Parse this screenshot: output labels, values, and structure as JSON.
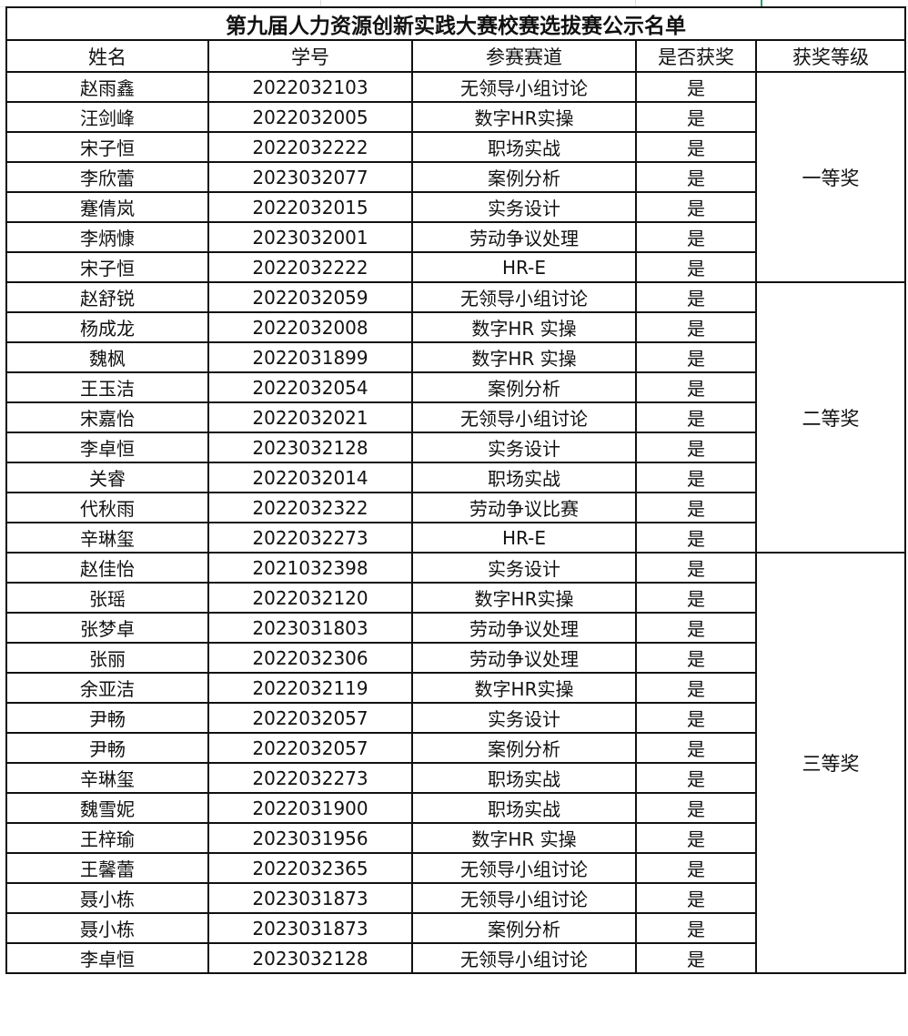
{
  "title": "第九届人力资源创新实践大赛校赛选拔赛公示名单",
  "headers": [
    "姓名",
    "学号",
    "参赛赛道",
    "是否获奖",
    "获奖等级"
  ],
  "groups": [
    {
      "level": "一等奖",
      "rows": [
        [
          "赵雨鑫",
          "2022032103",
          "无领导小组讨论",
          "是"
        ],
        [
          "汪剑峰",
          "2022032005",
          "数字HR实操",
          "是"
        ],
        [
          "宋子恒",
          "2022032222",
          "职场实战",
          "是"
        ],
        [
          "李欣蕾",
          "2023032077",
          "案例分析",
          "是"
        ],
        [
          "蹇倩岚",
          "2022032015",
          "实务设计",
          "是"
        ],
        [
          "李炳慷",
          "2023032001",
          "劳动争议处理",
          "是"
        ],
        [
          "宋子恒",
          "2022032222",
          "HR-E",
          "是"
        ]
      ]
    },
    {
      "level": "二等奖",
      "rows": [
        [
          "赵舒锐",
          "2022032059",
          "无领导小组讨论",
          "是"
        ],
        [
          "杨成龙",
          "2022032008",
          "数字HR 实操",
          "是"
        ],
        [
          "魏枫",
          "2022031899",
          "数字HR 实操",
          "是"
        ],
        [
          "王玉洁",
          "2022032054",
          "案例分析",
          "是"
        ],
        [
          "宋嘉怡",
          "2022032021",
          "无领导小组讨论",
          "是"
        ],
        [
          "李卓恒",
          "2023032128",
          "实务设计",
          "是"
        ],
        [
          "关睿",
          "2022032014",
          "职场实战",
          "是"
        ],
        [
          "代秋雨",
          "2022032322",
          "劳动争议比赛",
          "是"
        ],
        [
          "辛琳玺",
          "2022032273",
          "HR-E",
          "是"
        ]
      ]
    },
    {
      "level": "三等奖",
      "rows": [
        [
          "赵佳怡",
          "2021032398",
          "实务设计",
          "是"
        ],
        [
          "张瑶",
          "2022032120",
          "数字HR实操",
          "是"
        ],
        [
          "张梦卓",
          "2023031803",
          "劳动争议处理",
          "是"
        ],
        [
          "张丽",
          "2022032306",
          "劳动争议处理",
          "是"
        ],
        [
          "余亚洁",
          "2022032119",
          "数字HR实操",
          "是"
        ],
        [
          "尹畅",
          "2022032057",
          "实务设计",
          "是"
        ],
        [
          "尹畅",
          "2022032057",
          "案例分析",
          "是"
        ],
        [
          "辛琳玺",
          "2022032273",
          "职场实战",
          "是"
        ],
        [
          "魏雪妮",
          "2022031900",
          "职场实战",
          "是"
        ],
        [
          "王梓瑜",
          "2023031956",
          "数字HR 实操",
          "是"
        ],
        [
          "王馨蕾",
          "2022032365",
          "无领导小组讨论",
          "是"
        ],
        [
          "聂小栋",
          "2023031873",
          "无领导小组讨论",
          "是"
        ],
        [
          "聂小栋",
          "2023031873",
          "案例分析",
          "是"
        ],
        [
          "李卓恒",
          "2023032128",
          "无领导小组讨论",
          "是"
        ]
      ]
    }
  ]
}
